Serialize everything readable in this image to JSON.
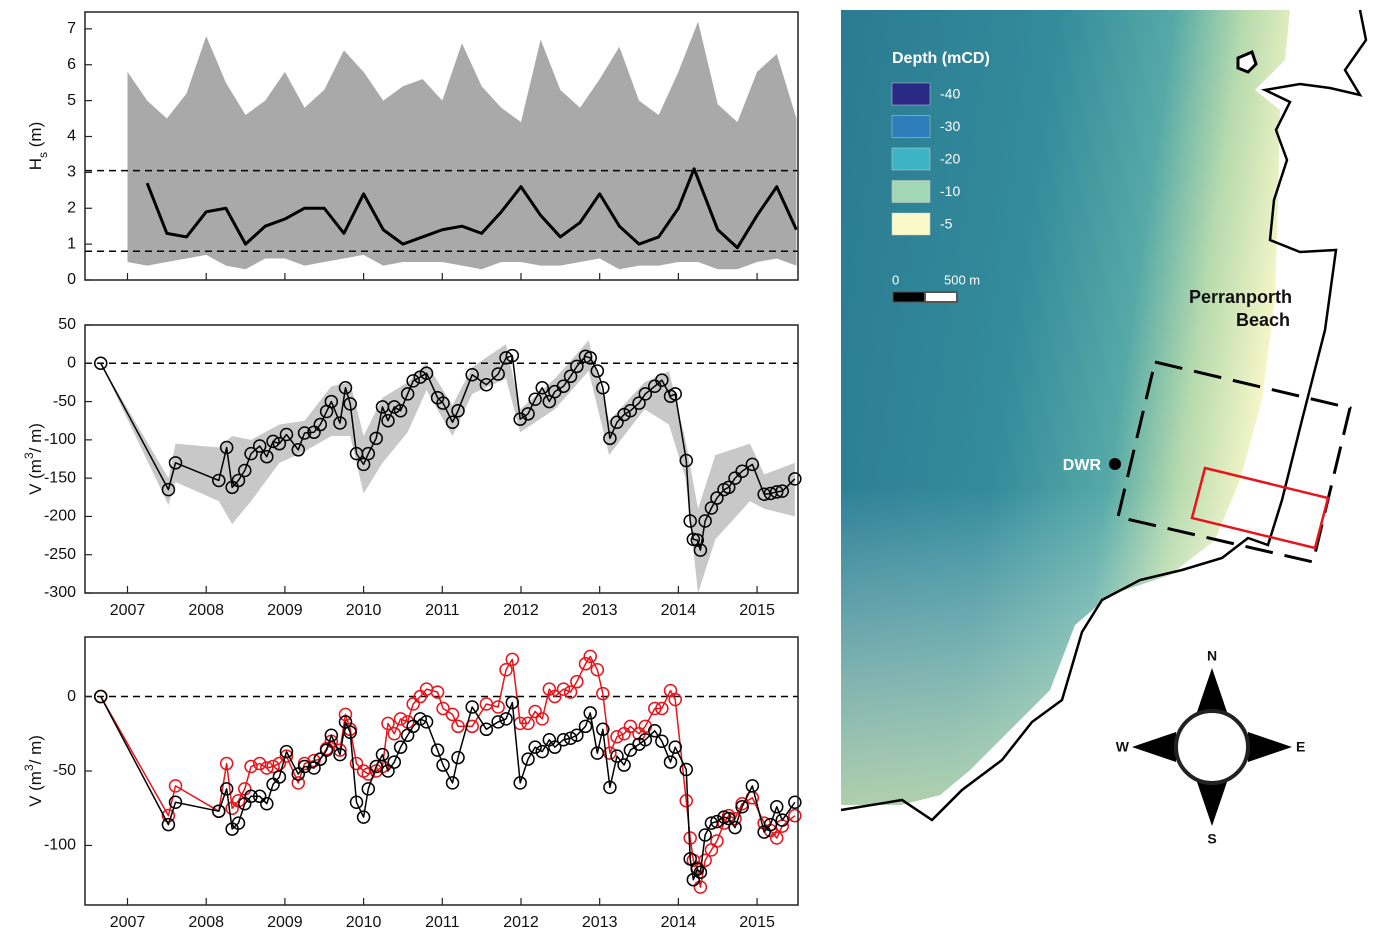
{
  "chart_data": [
    {
      "type": "line",
      "ylabel": [
        "H",
        "s",
        " (m)"
      ],
      "xlim": [
        2006.46,
        2015.52
      ],
      "ylim": [
        0,
        7.47
      ],
      "xticks": [
        2007,
        2008,
        2009,
        2010,
        2011,
        2012,
        2013,
        2014,
        2015
      ],
      "xticklabels": false,
      "yticks": [
        0,
        1,
        2,
        3,
        4,
        5,
        6,
        7
      ],
      "hlines": [
        3.05,
        0.8
      ],
      "band": {
        "color": "#a9a9a9",
        "x": [
          2007,
          2007.25,
          2007.5,
          2007.75,
          2008,
          2008.25,
          2008.5,
          2008.75,
          2009,
          2009.25,
          2009.5,
          2009.75,
          2010,
          2010.25,
          2010.5,
          2010.75,
          2011,
          2011.25,
          2011.5,
          2011.75,
          2012,
          2012.25,
          2012.5,
          2012.75,
          2013,
          2013.25,
          2013.5,
          2013.75,
          2014,
          2014.25,
          2014.5,
          2014.75,
          2015,
          2015.25,
          2015.5
        ],
        "upper": [
          5.8,
          5.0,
          4.5,
          5.2,
          6.8,
          5.5,
          4.6,
          5.0,
          5.8,
          4.8,
          5.3,
          6.4,
          5.8,
          5.0,
          5.4,
          5.6,
          5.0,
          6.6,
          5.4,
          4.8,
          4.4,
          6.7,
          5.3,
          4.8,
          5.6,
          6.5,
          5.0,
          4.6,
          5.8,
          7.2,
          4.9,
          4.4,
          5.8,
          6.3,
          4.5
        ],
        "lower": [
          0.5,
          0.4,
          0.5,
          0.6,
          0.7,
          0.4,
          0.3,
          0.6,
          0.6,
          0.4,
          0.5,
          0.6,
          0.7,
          0.4,
          0.5,
          0.5,
          0.5,
          0.4,
          0.3,
          0.5,
          0.5,
          0.4,
          0.4,
          0.5,
          0.6,
          0.3,
          0.4,
          0.4,
          0.5,
          0.5,
          0.3,
          0.3,
          0.5,
          0.6,
          0.4
        ]
      },
      "series": [
        {
          "color": "#000000",
          "width": 3,
          "x": [
            2007.25,
            2007.5,
            2007.75,
            2008,
            2008.25,
            2008.5,
            2008.75,
            2009,
            2009.25,
            2009.5,
            2009.75,
            2010,
            2010.25,
            2010.5,
            2010.75,
            2011,
            2011.25,
            2011.5,
            2011.75,
            2012,
            2012.25,
            2012.5,
            2012.75,
            2013,
            2013.25,
            2013.5,
            2013.75,
            2014,
            2014.2,
            2014.5,
            2014.75,
            2015,
            2015.25,
            2015.5
          ],
          "values": [
            2.7,
            1.3,
            1.2,
            1.9,
            2.0,
            1.0,
            1.5,
            1.7,
            2.0,
            2.0,
            1.3,
            2.4,
            1.4,
            1.0,
            1.2,
            1.4,
            1.5,
            1.3,
            1.9,
            2.6,
            1.8,
            1.2,
            1.6,
            2.4,
            1.5,
            1.0,
            1.2,
            2.0,
            3.1,
            1.4,
            0.9,
            1.8,
            2.6,
            1.4
          ]
        }
      ]
    },
    {
      "type": "line",
      "ylabel": [
        "V (m",
        "3",
        "/ m)"
      ],
      "markers": true,
      "xlim": [
        2006.46,
        2015.52
      ],
      "ylim": [
        -300,
        50
      ],
      "xticks": [
        2007,
        2008,
        2009,
        2010,
        2011,
        2012,
        2013,
        2014,
        2015
      ],
      "yticks": [
        -300,
        -250,
        -200,
        -150,
        -100,
        -50,
        0,
        50
      ],
      "hlines": [
        0
      ],
      "x": [
        2006.66,
        2007.52,
        2007.61,
        2008.16,
        2008.26,
        2008.33,
        2008.41,
        2008.49,
        2008.57,
        2008.68,
        2008.77,
        2008.85,
        2008.93,
        2009.02,
        2009.17,
        2009.25,
        2009.37,
        2009.45,
        2009.53,
        2009.59,
        2009.7,
        2009.77,
        2009.83,
        2009.91,
        2010.0,
        2010.06,
        2010.16,
        2010.24,
        2010.31,
        2010.39,
        2010.47,
        2010.56,
        2010.63,
        2010.72,
        2010.8,
        2010.94,
        2011.01,
        2011.13,
        2011.2,
        2011.38,
        2011.56,
        2011.71,
        2011.81,
        2011.89,
        2011.99,
        2012.09,
        2012.18,
        2012.27,
        2012.36,
        2012.43,
        2012.54,
        2012.63,
        2012.71,
        2012.82,
        2012.88,
        2012.97,
        2013.04,
        2013.13,
        2013.22,
        2013.31,
        2013.39,
        2013.5,
        2013.58,
        2013.7,
        2013.79,
        2013.9,
        2013.96,
        2014.1,
        2014.15,
        2014.19,
        2014.24,
        2014.28,
        2014.34,
        2014.42,
        2014.49,
        2014.58,
        2014.64,
        2014.72,
        2014.81,
        2014.94,
        2015.09,
        2015.17,
        2015.25,
        2015.32,
        2015.48
      ],
      "band": {
        "color": "#c8c8c8",
        "x": [
          2006.66,
          2007.52,
          2007.61,
          2008.16,
          2008.33,
          2008.57,
          2008.93,
          2009.25,
          2009.59,
          2009.83,
          2010.0,
          2010.24,
          2010.56,
          2010.8,
          2011.13,
          2011.38,
          2011.81,
          2011.99,
          2012.43,
          2012.86,
          2013.12,
          2013.57,
          2013.88,
          2014.09,
          2014.25,
          2014.47,
          2014.91,
          2015.09,
          2015.48
        ],
        "upper": [
          0,
          -150,
          -105,
          -110,
          -95,
          -100,
          -80,
          -75,
          -30,
          -25,
          -95,
          -45,
          -25,
          0,
          -55,
          -5,
          25,
          -60,
          -20,
          30,
          -75,
          -25,
          -10,
          -100,
          -190,
          -120,
          -105,
          -145,
          -130
        ],
        "lower": [
          0,
          -185,
          -155,
          -180,
          -210,
          -180,
          -130,
          -115,
          -95,
          -95,
          -170,
          -130,
          -90,
          -35,
          -95,
          -40,
          -20,
          -90,
          -60,
          -10,
          -120,
          -60,
          -80,
          -150,
          -300,
          -230,
          -180,
          -190,
          -200
        ]
      },
      "series": [
        {
          "color": "#000000",
          "width": 1.5,
          "values": [
            0,
            -165,
            -130,
            -153,
            -110,
            -162,
            -153,
            -140,
            -118,
            -108,
            -122,
            -102,
            -105,
            -93,
            -113,
            -91,
            -90,
            -80,
            -63,
            -50,
            -78,
            -32,
            -53,
            -118,
            -132,
            -118,
            -98,
            -57,
            -75,
            -57,
            -62,
            -40,
            -23,
            -18,
            -13,
            -45,
            -52,
            -77,
            -62,
            -15,
            -28,
            -14,
            7,
            10,
            -73,
            -66,
            -47,
            -32,
            -50,
            -37,
            -30,
            -17,
            -4,
            9,
            7,
            -10,
            -32,
            -98,
            -77,
            -67,
            -62,
            -52,
            -40,
            -30,
            -22,
            -43,
            -40,
            -127,
            -206,
            -230,
            -231,
            -244,
            -206,
            -189,
            -176,
            -165,
            -162,
            -150,
            -141,
            -132,
            -171,
            -170,
            -168,
            -167,
            -151
          ]
        }
      ]
    },
    {
      "type": "line",
      "ylabel": [
        "V (m",
        "3",
        "/ m)"
      ],
      "markers": true,
      "xlim": [
        2006.46,
        2015.52
      ],
      "ylim": [
        -140,
        40
      ],
      "xticks": [
        2007,
        2008,
        2009,
        2010,
        2011,
        2012,
        2013,
        2014,
        2015
      ],
      "yticks": [
        -100,
        -50,
        0
      ],
      "hlines": [
        0
      ],
      "x": [
        2006.66,
        2007.52,
        2007.61,
        2008.16,
        2008.26,
        2008.33,
        2008.41,
        2008.49,
        2008.57,
        2008.68,
        2008.77,
        2008.85,
        2008.93,
        2009.02,
        2009.17,
        2009.25,
        2009.37,
        2009.45,
        2009.53,
        2009.59,
        2009.7,
        2009.77,
        2009.83,
        2009.91,
        2010.0,
        2010.06,
        2010.16,
        2010.24,
        2010.31,
        2010.39,
        2010.47,
        2010.56,
        2010.63,
        2010.72,
        2010.8,
        2010.94,
        2011.01,
        2011.13,
        2011.2,
        2011.38,
        2011.56,
        2011.71,
        2011.81,
        2011.89,
        2011.99,
        2012.09,
        2012.18,
        2012.27,
        2012.36,
        2012.43,
        2012.54,
        2012.63,
        2012.71,
        2012.82,
        2012.88,
        2012.97,
        2013.04,
        2013.13,
        2013.22,
        2013.31,
        2013.39,
        2013.5,
        2013.58,
        2013.7,
        2013.79,
        2013.9,
        2013.96,
        2014.1,
        2014.15,
        2014.19,
        2014.24,
        2014.28,
        2014.34,
        2014.42,
        2014.49,
        2014.58,
        2014.64,
        2014.72,
        2014.81,
        2014.94,
        2015.09,
        2015.17,
        2015.25,
        2015.32,
        2015.48
      ],
      "series": [
        {
          "color": "#e8141b",
          "width": 1.5,
          "values": [
            0,
            -80,
            -60,
            -77,
            -45,
            -75,
            -70,
            -62,
            -47,
            -45,
            -48,
            -47,
            -45,
            -40,
            -58,
            -45,
            -43,
            -42,
            -35,
            -30,
            -36,
            -12,
            -22,
            -45,
            -50,
            -52,
            -50,
            -47,
            -18,
            -25,
            -15,
            -17,
            -5,
            0,
            5,
            3,
            -8,
            -12,
            -20,
            -20,
            -5,
            -7,
            18,
            25,
            -18,
            -18,
            -10,
            -15,
            5,
            0,
            5,
            3,
            10,
            22,
            27,
            18,
            2,
            -38,
            -27,
            -25,
            -20,
            -25,
            -20,
            -8,
            -8,
            4,
            -2,
            -70,
            -95,
            -110,
            -115,
            -128,
            -110,
            -103,
            -97,
            -85,
            -80,
            -82,
            -72,
            -68,
            -85,
            -90,
            -95,
            -87,
            -80
          ]
        },
        {
          "color": "#000000",
          "width": 1.5,
          "values": [
            0,
            -86,
            -71,
            -77,
            -62,
            -89,
            -85,
            -72,
            -67,
            -67,
            -72,
            -59,
            -54,
            -37,
            -52,
            -47,
            -48,
            -42,
            -36,
            -26,
            -39,
            -17,
            -24,
            -71,
            -81,
            -62,
            -47,
            -39,
            -50,
            -44,
            -34,
            -26,
            -20,
            -15,
            -17,
            -36,
            -46,
            -58,
            -41,
            -7,
            -22,
            -17,
            -15,
            -4,
            -58,
            -42,
            -34,
            -37,
            -29,
            -34,
            -29,
            -28,
            -26,
            -20,
            -11,
            -38,
            -22,
            -61,
            -40,
            -46,
            -36,
            -32,
            -29,
            -23,
            -30,
            -44,
            -34,
            -49,
            -109,
            -123,
            -116,
            -118,
            -93,
            -85,
            -84,
            -81,
            -82,
            -88,
            -74,
            -60,
            -91,
            -86,
            -74,
            -83,
            -71
          ]
        }
      ]
    }
  ],
  "map": {
    "legend": {
      "title": "Depth (mCD)",
      "items": [
        {
          "label": "-40",
          "color": "#2a2a86"
        },
        {
          "label": "-30",
          "color": "#2e7dbb"
        },
        {
          "label": "-20",
          "color": "#3db4c6"
        },
        {
          "label": "-10",
          "color": "#a2d6b4"
        },
        {
          "label": "-5",
          "color": "#fbf8ca"
        }
      ]
    },
    "scale": [
      "0",
      "500 m"
    ],
    "place": [
      "Perranporth",
      "Beach"
    ],
    "buoy": "DWR",
    "compass": {
      "n": "N",
      "e": "E",
      "s": "S",
      "w": "W"
    }
  }
}
